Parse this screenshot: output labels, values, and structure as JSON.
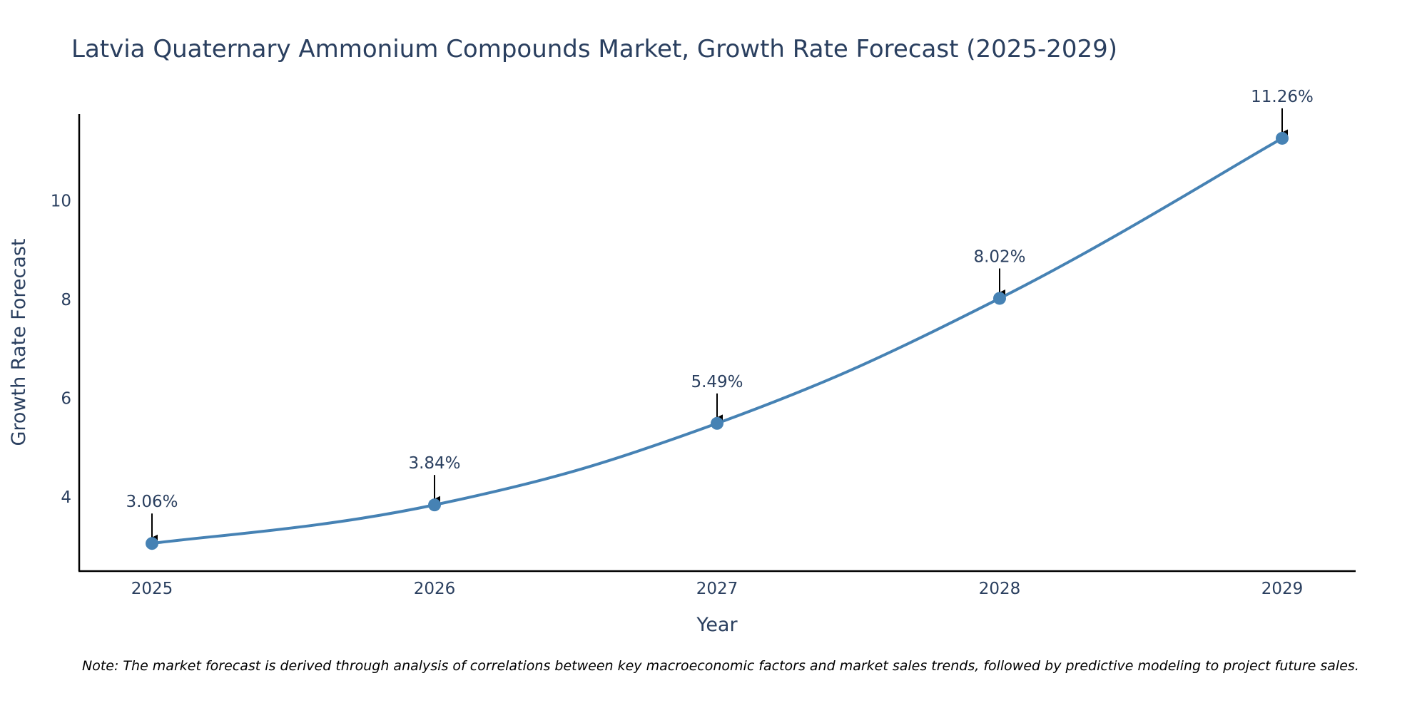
{
  "colors": {
    "line": "#4682b4",
    "marker": "#4682b4",
    "axis": "#000000",
    "text": "#2a3f5f",
    "arrow": "#000000"
  },
  "chart_data": {
    "type": "line",
    "title": "Latvia Quaternary Ammonium Compounds Market, Growth Rate Forecast (2025-2029)",
    "xlabel": "Year",
    "ylabel": "Growth Rate Forecast",
    "categories": [
      "2025",
      "2026",
      "2027",
      "2028",
      "2029"
    ],
    "values": [
      3.06,
      3.84,
      5.49,
      8.02,
      11.26
    ],
    "data_labels": [
      "3.06%",
      "3.84%",
      "5.49%",
      "8.02%",
      "11.26%"
    ],
    "y_ticks": [
      4,
      6,
      8,
      10
    ],
    "y_tick_labels": [
      "4",
      "6",
      "8",
      "10"
    ],
    "ylim": [
      2.5,
      11.75
    ],
    "line_shape": "spline",
    "grid": false,
    "note": "Note: The market forecast is derived through analysis of correlations between key macroeconomic factors and market sales trends, followed by predictive modeling to project future sales."
  }
}
